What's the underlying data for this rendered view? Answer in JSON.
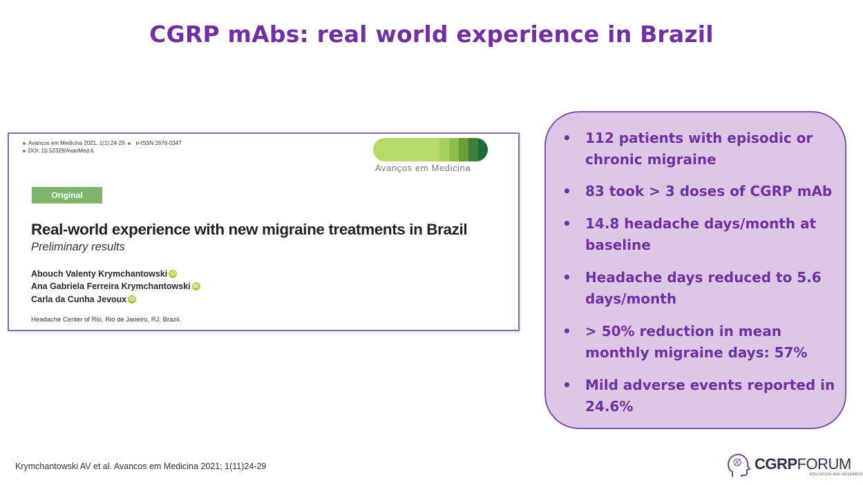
{
  "slide": {
    "title": "CGRP mAbs: real world experience in Brazil",
    "citation": "Krymchantowski AV et al. Avancos em Medicina 2021; 1(11)24-29"
  },
  "article": {
    "meta_line1_left": "Avanços em Medicina 2021, 1(1):24-29",
    "meta_line1_right": "e-ISSN 2676-0347",
    "meta_line2": "DOI: 10.52329/AvanMed.6",
    "journal_name": "Avanços em Medicina",
    "badge": "Original",
    "title": "Real-world experience with new migraine treatments in Brazil",
    "subtitle": "Preliminary results",
    "authors": [
      "Abouch Valenty Krymchantowski",
      "Ana Gabriela Ferreira Krymchantowski",
      "Carla da Cunha Jevoux"
    ],
    "orcid_icon": "iD",
    "affiliation": "Headache Center of Rio, Rio de Janeiro, RJ, Brazil.",
    "bar_colors": [
      "#b5d96b",
      "#a5cf5d",
      "#8fbd4a",
      "#6d9e3c",
      "#3f7f3a",
      "#1d6b39"
    ]
  },
  "bullets": {
    "marker": "•",
    "items": [
      "112 patients with episodic or chronic migraine",
      "83 took > 3 doses of CGRP mAb",
      "14.8 headache days/month at baseline",
      "Headache days reduced to 5.6 days/month",
      "> 50% reduction in mean monthly migraine days: 57%",
      "Mild adverse events reported in 24.6%"
    ]
  },
  "logo": {
    "icon": "head-profile-icon",
    "brand_bold": "CGRP",
    "brand_light": "FORUM",
    "tagline": "EDUCATION AND RESEARCH"
  },
  "colors": {
    "accent_purple": "#7030a0",
    "box_fill": "#dcc7e6",
    "box_border": "#7b57a0",
    "badge_green": "#7fb46c"
  }
}
